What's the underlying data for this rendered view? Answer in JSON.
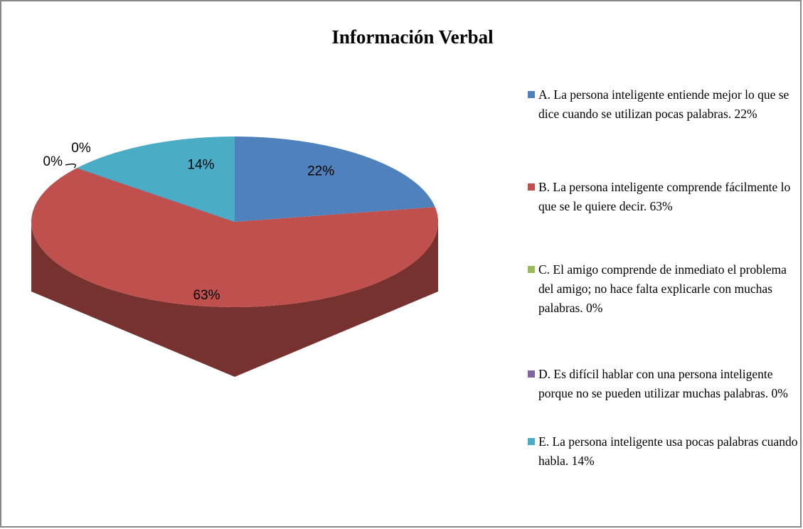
{
  "chart_data": {
    "type": "pie",
    "title": "Información Verbal",
    "categories": [
      "A. La persona inteligente entiende mejor lo que se dice cuando se utilizan pocas palabras. 22%",
      "B. La persona inteligente comprende fácilmente lo que se le quiere decir. 63%",
      "C. El amigo comprende de inmediato el problema del amigo; no hace falta explicarle con muchas palabras. 0%",
      "D. Es difícil hablar con una persona inteligente porque no se pueden utilizar muchas palabras. 0%",
      "E. La persona inteligente usa pocas palabras cuando habla. 14%"
    ],
    "values": [
      22,
      63,
      0,
      0,
      14
    ],
    "value_labels": [
      "22%",
      "63%",
      "0%",
      "0%",
      "14%"
    ],
    "colors": [
      "#4f81bd",
      "#c0504d",
      "#9bbb59",
      "#8064a2",
      "#4bacc6"
    ],
    "legend": "right"
  }
}
